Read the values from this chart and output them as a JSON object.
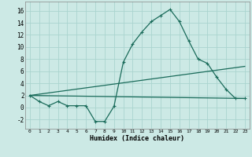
{
  "xlabel": "Humidex (Indice chaleur)",
  "ylabel": "",
  "xlim": [
    -0.5,
    23.5
  ],
  "ylim": [
    -3.5,
    17.5
  ],
  "yticks": [
    -2,
    0,
    2,
    4,
    6,
    8,
    10,
    12,
    14,
    16
  ],
  "xticks": [
    0,
    1,
    2,
    3,
    4,
    5,
    6,
    7,
    8,
    9,
    10,
    11,
    12,
    13,
    14,
    15,
    16,
    17,
    18,
    19,
    20,
    21,
    22,
    23
  ],
  "bg_color": "#cce9e5",
  "grid_color": "#aad4cf",
  "line_color": "#1a6b5a",
  "line1_x": [
    0,
    1,
    2,
    3,
    4,
    5,
    6,
    7,
    8,
    9,
    10,
    11,
    12,
    13,
    14,
    15,
    16,
    17,
    18,
    19,
    20,
    21,
    22,
    23
  ],
  "line1_y": [
    2.0,
    1.0,
    0.3,
    1.0,
    0.3,
    0.3,
    0.3,
    -2.3,
    -2.3,
    0.2,
    7.5,
    10.5,
    12.5,
    14.2,
    15.2,
    16.2,
    14.2,
    11.0,
    8.0,
    7.3,
    5.0,
    3.0,
    1.5,
    1.5
  ],
  "line2_x": [
    0,
    23
  ],
  "line2_y": [
    2.0,
    6.8
  ],
  "line3_x": [
    0,
    23
  ],
  "line3_y": [
    2.0,
    1.5
  ]
}
